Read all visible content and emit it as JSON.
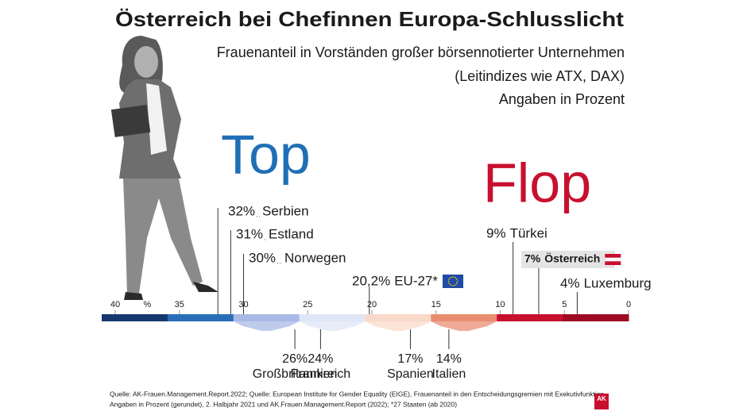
{
  "chart_data": {
    "type": "scale",
    "title": "Österreich bei Chefinnen Europa-Schlusslicht",
    "subtitle": [
      "Frauenanteil in Vorständen großer börsennotierter Unternehmen",
      "(Leitindizes wie ATX, DAX)",
      "Angaben in Prozent"
    ],
    "headings": {
      "top": "Top",
      "flop": "Flop"
    },
    "categories": [
      "Serbien",
      "Estland",
      "Norwegen",
      "EU-27*",
      "Türkei",
      "Österreich",
      "Luxemburg",
      "Großbritannien",
      "Frankreich",
      "Spanien",
      "Italien"
    ],
    "values": [
      32,
      31,
      30,
      20.2,
      9,
      7,
      4,
      26,
      24,
      17,
      14
    ],
    "value_labels": [
      "32%",
      "31%",
      "30%",
      "20,2%",
      "9%",
      "7%",
      "4%",
      "26%",
      "24%",
      "17%",
      "14%"
    ],
    "xlim": [
      40,
      0
    ],
    "xticks": [
      40,
      35,
      30,
      25,
      20,
      15,
      10,
      5,
      0
    ],
    "x_unit": "%",
    "colors": [
      "#17386e",
      "#2a6db8",
      "#a9b9e6",
      "#dfe6f6",
      "#f9d9c9",
      "#e88e70",
      "#c8102e",
      "#9e0b22"
    ],
    "source": [
      "Quelle: AK-Frauen.Management.Report.2022; Quelle: European Institute for Gender Equality (EIGE), Frauenanteil in den Entscheidungsgremien mit Exekutivfunktion,",
      "Angaben in Prozent (gerundet), 2. Halbjahr 2021 und AK.Frauen.Management.Report (2022); *27 Staaten (ab 2020)"
    ],
    "logo": "AK"
  }
}
